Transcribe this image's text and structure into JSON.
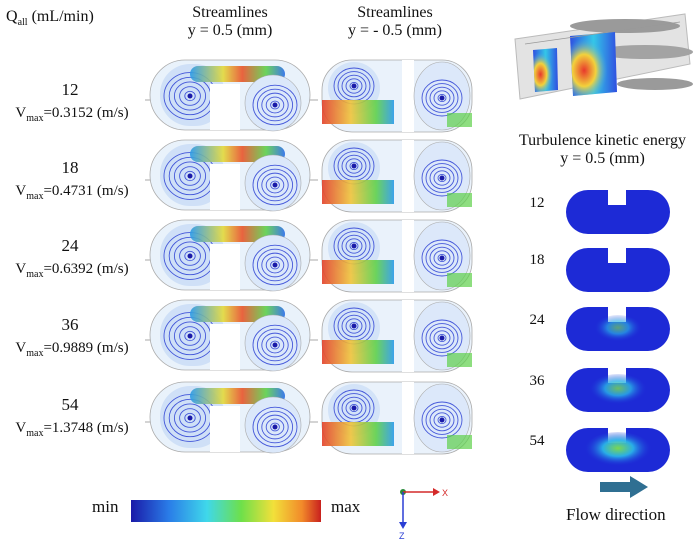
{
  "header": {
    "q_label_main": "Q",
    "q_label_sub": "all",
    "q_label_unit": "(mL/min)",
    "col1_title": "Streamlines",
    "col1_sub": "y = 0.5 (mm)",
    "col2_title": "Streamlines",
    "col2_sub": "y = - 0.5 (mm)",
    "tke_title": "Turbulence kinetic energy",
    "tke_sub": "y =  0.5 (mm)"
  },
  "rows": [
    {
      "q": "12",
      "vmax_prefix": "V",
      "vmax_sub": "max",
      "vmax_value": "=0.3152  (m/s)"
    },
    {
      "q": "18",
      "vmax_prefix": "V",
      "vmax_sub": "max",
      "vmax_value": "=0.4731  (m/s)"
    },
    {
      "q": "24",
      "vmax_prefix": "V",
      "vmax_sub": "max",
      "vmax_value": "=0.6392  (m/s)"
    },
    {
      "q": "36",
      "vmax_prefix": "V",
      "vmax_sub": "max",
      "vmax_value": "=0.9889  (m/s)"
    },
    {
      "q": "54",
      "vmax_prefix": "V",
      "vmax_sub": "max",
      "vmax_value": "=1.3748  (m/s)"
    }
  ],
  "tke_rows": [
    "12",
    "18",
    "24",
    "36",
    "54"
  ],
  "legend": {
    "min_label": "min",
    "max_label": "max"
  },
  "axes": {
    "x_label": "X",
    "z_label": "Z"
  },
  "flow": {
    "label": "Flow direction"
  },
  "colors": {
    "tke_blue": "#1d2ad6",
    "arrow": "#2f6f92",
    "axis_x": "#d42a2a",
    "axis_z": "#2a3ed4"
  }
}
